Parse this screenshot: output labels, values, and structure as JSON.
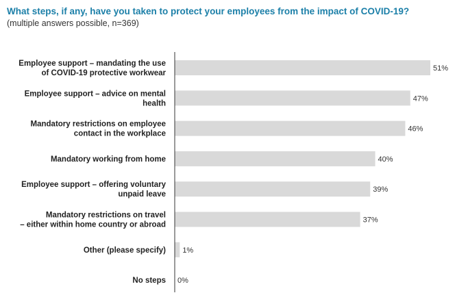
{
  "title": "What steps, if any, have you taken to protect your employees from the impact of COVID-19?",
  "subtitle": "(multiple answers possible, n=369)",
  "chart_data": {
    "type": "bar",
    "orientation": "horizontal",
    "categories": [
      [
        "Employee support – mandating the use",
        "of COVID-19 protective workwear"
      ],
      [
        "Employee support – advice on mental",
        "health"
      ],
      [
        "Mandatory restrictions on employee",
        "contact in the workplace"
      ],
      [
        "Mandatory working from home"
      ],
      [
        "Employee support – offering voluntary",
        "unpaid leave"
      ],
      [
        "Mandatory restrictions on travel",
        "– either within home country or abroad"
      ],
      [
        "Other (please specify)"
      ],
      [
        "No steps"
      ]
    ],
    "values": [
      51,
      47,
      46,
      40,
      39,
      37,
      1,
      0
    ],
    "value_labels": [
      "51%",
      "47%",
      "46%",
      "40%",
      "39%",
      "37%",
      "1%",
      "0%"
    ],
    "bar_color": "#d9d9d9",
    "axis_color": "#333333",
    "xlim": [
      0,
      51
    ],
    "grid": false,
    "legend": "none"
  }
}
